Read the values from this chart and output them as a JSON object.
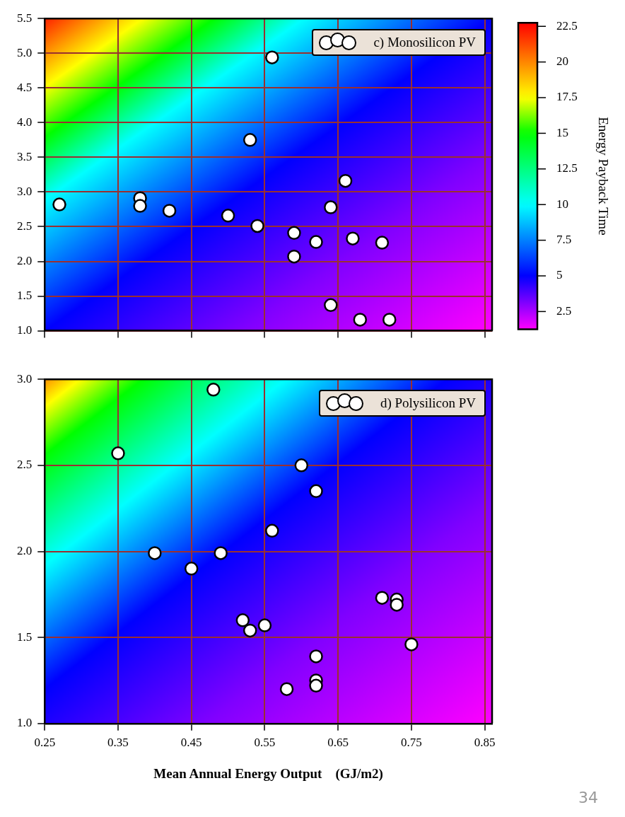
{
  "chart_data": [
    {
      "type": "scatter",
      "xlim": [
        0.25,
        0.86
      ],
      "xticks": [
        0.25,
        0.35,
        0.45,
        0.55,
        0.65,
        0.75,
        0.85
      ],
      "ylim": [
        1,
        5.5
      ],
      "yticks": [
        {
          "value": 1,
          "label": "1.0"
        },
        {
          "value": 1.5,
          "label": "1.5"
        },
        {
          "value": 2,
          "label": "2.0"
        },
        {
          "value": 2.5,
          "label": "2.5"
        },
        {
          "value": 3,
          "label": "3.0"
        },
        {
          "value": 3.5,
          "label": "3.5"
        },
        {
          "value": 4,
          "label": "4.0"
        },
        {
          "value": 4.5,
          "label": "4.5"
        },
        {
          "value": 5,
          "label": "5.0"
        },
        {
          "value": 5.5,
          "label": "5.5"
        }
      ],
      "tick_labels": "y",
      "grid": true,
      "legend": "top right",
      "marker": "circle",
      "clabel": "Energy Payback Time",
      "clim": [
        1.25,
        22.75
      ],
      "cticks": [
        2.5,
        5,
        7.5,
        10,
        12.5,
        15,
        17.5,
        20,
        22.5
      ],
      "series": [
        {
          "name": "c) Monosilicon PV",
          "color": "#ffffff",
          "x": [
            0.56,
            0.53,
            0.27,
            0.38,
            0.38,
            0.42,
            0.5,
            0.54,
            0.66,
            0.64,
            0.59,
            0.62,
            0.67,
            0.71,
            0.59,
            0.64,
            0.68,
            0.72
          ],
          "values": [
            4.94,
            3.75,
            2.82,
            2.91,
            2.8,
            2.73,
            2.66,
            2.51,
            3.16,
            2.78,
            2.41,
            2.28,
            2.33,
            2.27,
            2.07,
            1.37,
            1.16,
            1.16
          ]
        }
      ]
    },
    {
      "type": "scatter",
      "xlim": [
        0.25,
        0.86
      ],
      "xticks": [
        0.25,
        0.35,
        0.45,
        0.55,
        0.65,
        0.75,
        0.85
      ],
      "ylim": [
        1,
        3
      ],
      "yticks": [
        {
          "value": 1,
          "label": "1.0"
        },
        {
          "value": 1.5,
          "label": "1.5"
        },
        {
          "value": 2,
          "label": "2.0"
        },
        {
          "value": 2.5,
          "label": "2.5"
        },
        {
          "value": 3,
          "label": "3.0"
        }
      ],
      "xlabel": "Mean Annual Energy Output    (GJ/m2)",
      "grid": true,
      "legend": "top right",
      "marker": "circle",
      "annotations": [
        "34"
      ],
      "series": [
        {
          "name": "d) Polysilicon PV",
          "color": "#ffffff",
          "x": [
            0.48,
            0.35,
            0.6,
            0.62,
            0.56,
            0.4,
            0.45,
            0.49,
            0.52,
            0.53,
            0.55,
            0.71,
            0.73,
            0.73,
            0.75,
            0.62,
            0.62,
            0.62,
            0.58
          ],
          "values": [
            2.94,
            2.57,
            2.5,
            2.35,
            2.12,
            1.99,
            1.9,
            1.99,
            1.6,
            1.54,
            1.57,
            1.73,
            1.72,
            1.69,
            1.46,
            1.39,
            1.25,
            1.22,
            1.2
          ]
        }
      ]
    }
  ]
}
